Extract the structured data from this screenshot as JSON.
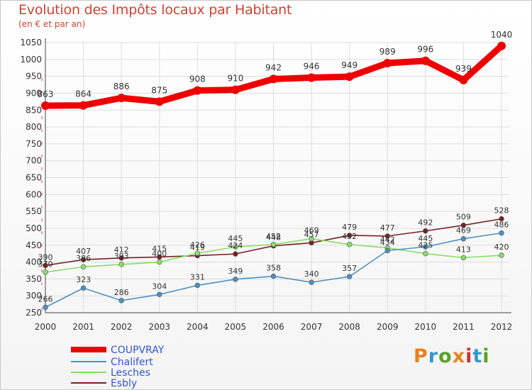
{
  "title": "Evolution des Impôts locaux par Habitant",
  "subtitle": "(en € et par an)",
  "logo": {
    "text": "Proxiti",
    "colors": [
      "#e8821e",
      "#3399cc",
      "#5aa02c",
      "#e8821e",
      "#cc3333",
      "#3399cc",
      "#5aa02c"
    ]
  },
  "chart_data": {
    "type": "line",
    "x": [
      2000,
      2001,
      2002,
      2003,
      2004,
      2005,
      2006,
      2007,
      2008,
      2009,
      2010,
      2011,
      2012
    ],
    "ylim": [
      250,
      1050
    ],
    "yticks": [
      250,
      300,
      350,
      400,
      450,
      500,
      550,
      600,
      650,
      700,
      750,
      800,
      850,
      900,
      950,
      1000,
      1050
    ],
    "grid": true,
    "legend_position": "bottom-left",
    "series": [
      {
        "name": "COUPVRAY",
        "color": "#ee0000",
        "values": [
          863,
          864,
          886,
          875,
          908,
          910,
          942,
          946,
          949,
          989,
          996,
          939,
          1040
        ]
      },
      {
        "name": "Chalifert",
        "color": "#4d90c4",
        "values": [
          266,
          323,
          286,
          304,
          331,
          349,
          358,
          340,
          357,
          434,
          445,
          469,
          486
        ]
      },
      {
        "name": "Lesches",
        "color": "#88dd66",
        "values": [
          370,
          386,
          393,
          400,
          426,
          445,
          452,
          469,
          452,
          442,
          425,
          413,
          420
        ]
      },
      {
        "name": "Esbly",
        "color": "#772222",
        "values": [
          390,
          407,
          412,
          415,
          419,
          424,
          448,
          457,
          479,
          477,
          492,
          509,
          528
        ]
      }
    ],
    "data_labels": [
      [
        "863",
        "864",
        "886",
        "875",
        "908",
        "910",
        "942",
        "946",
        "949",
        "989",
        "996",
        "939",
        "1040"
      ],
      [
        "266",
        "323",
        "286",
        "304",
        "331",
        "349",
        "358",
        "340",
        "357",
        "434",
        "445",
        "469",
        "486"
      ],
      [
        "370",
        "386",
        "393",
        "400",
        "426",
        "445",
        "452",
        "469",
        "452",
        "442",
        "425",
        "413",
        "420"
      ],
      [
        "390",
        "407",
        "412",
        "415",
        "419",
        "424",
        "448",
        "457",
        "479",
        "477",
        "492",
        "509",
        "528"
      ]
    ]
  }
}
